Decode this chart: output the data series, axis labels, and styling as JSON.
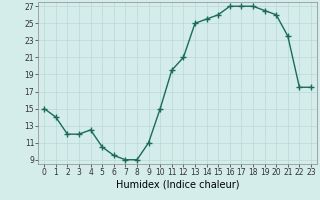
{
  "x": [
    0,
    1,
    2,
    3,
    4,
    5,
    6,
    7,
    8,
    9,
    10,
    11,
    12,
    13,
    14,
    15,
    16,
    17,
    18,
    19,
    20,
    21,
    22,
    23
  ],
  "y": [
    15,
    14,
    12,
    12,
    12.5,
    10.5,
    9.5,
    9,
    9,
    11,
    15,
    19.5,
    21,
    25,
    25.5,
    26,
    27,
    27,
    27,
    26.5,
    26,
    23.5,
    17.5,
    17.5
  ],
  "line_color": "#1a6b5a",
  "marker": "+",
  "marker_size": 4,
  "marker_linewidth": 1.0,
  "bg_color": "#d4ecea",
  "grid_color": "#b8d8d5",
  "xlabel": "Humidex (Indice chaleur)",
  "xlim": [
    -0.5,
    23.5
  ],
  "ylim": [
    8.5,
    27.5
  ],
  "yticks": [
    9,
    11,
    13,
    15,
    17,
    19,
    21,
    23,
    25,
    27
  ],
  "xtick_labels": [
    "0",
    "1",
    "2",
    "3",
    "4",
    "5",
    "6",
    "7",
    "8",
    "9",
    "10",
    "11",
    "12",
    "13",
    "14",
    "15",
    "16",
    "17",
    "18",
    "19",
    "20",
    "21",
    "22",
    "23"
  ],
  "tick_label_fontsize": 5.5,
  "xlabel_fontsize": 7,
  "line_width": 1.0
}
